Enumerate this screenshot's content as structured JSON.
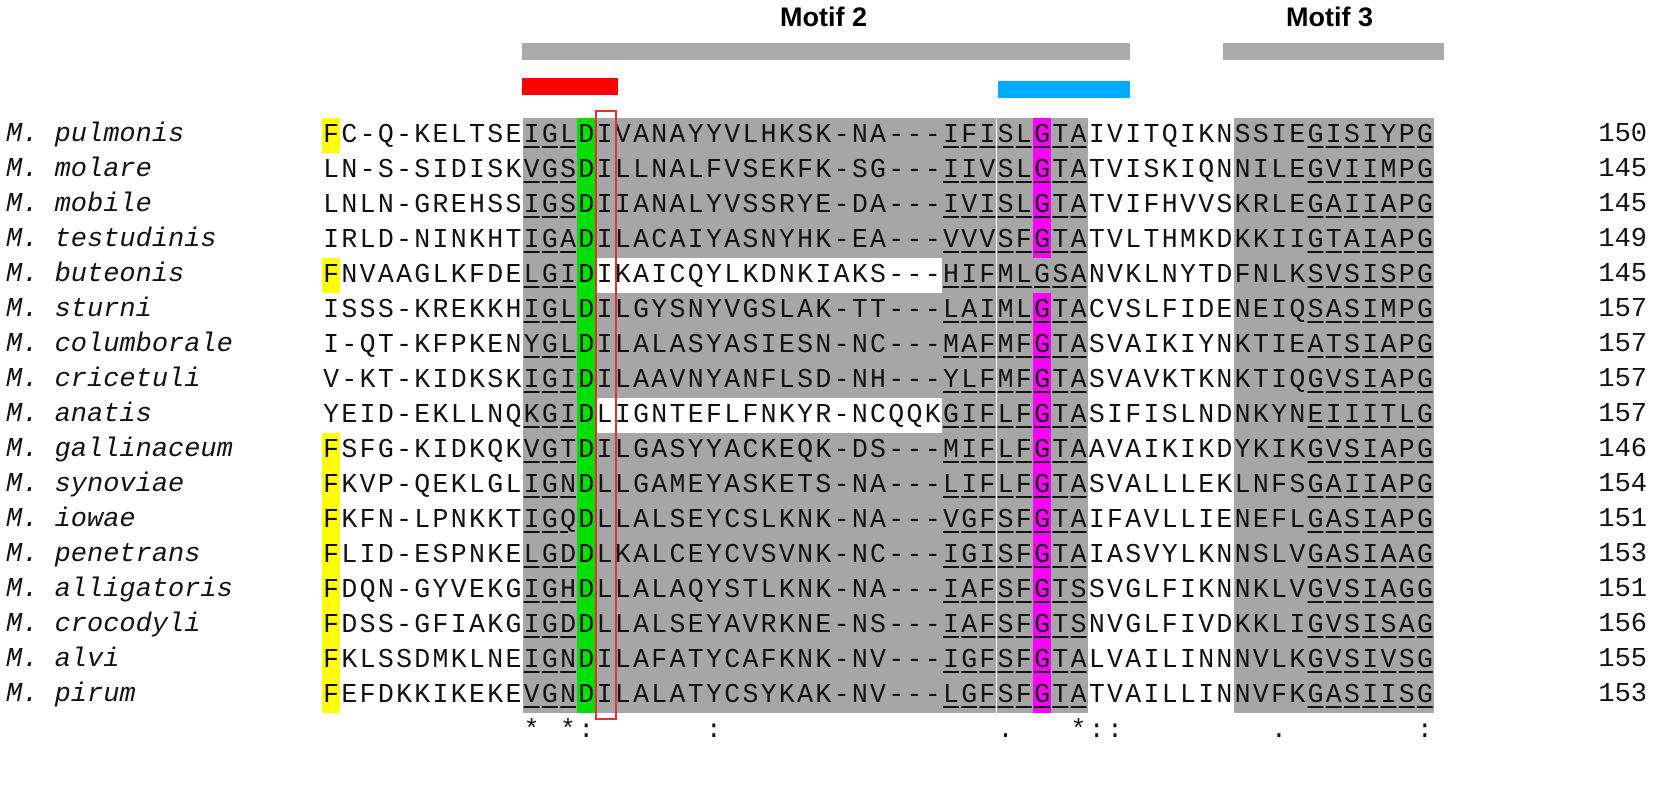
{
  "motifs": [
    {
      "label": "Motif 2",
      "bar_color": "#aaaaaa"
    },
    {
      "label": "Motif 3",
      "bar_color": "#aaaaaa"
    }
  ],
  "marker_colors": {
    "red": "#ff0000",
    "blue": "#00aaff",
    "outline": "#e53030"
  },
  "highlight_colors": {
    "shade": "#a6a6a6",
    "yellow": "#ffff00",
    "green": "#00e000",
    "magenta": "#ff00ff"
  },
  "sequences": [
    {
      "species": "M. pulmonis",
      "seq": "FC-Q-KELTSEIGLDIVANAYYVLHKSK-NA---IFISLGTAIVITQIKNSSIEGISIYPG",
      "end": "150"
    },
    {
      "species": "M. molare",
      "seq": "LN-S-SIDISKVGSDILLNALFVSEKFK-SG---IIVSLGTATVISKIQNNILEGVIIMPG",
      "end": "145"
    },
    {
      "species": "M. mobile",
      "seq": "LNLN-GREHSSIGSDIIANALYVSSRYE-DA---IVISLGTATVIFHVVSKRLEGAIIAPG",
      "end": "145"
    },
    {
      "species": "M. testudinis",
      "seq": "IRLD-NINKHTIGADILACAIYASNYHK-EA---VVVSFGTATVLTHMKDKKIIGTAIAPG",
      "end": "149"
    },
    {
      "species": "M. buteonis",
      "seq": "FNVAAGLKFDELGIDIKAICQYLKDNKIAKS---HIFMLGSANVKLNYTDFNLKSVSISPG",
      "end": "145"
    },
    {
      "species": "M. sturni",
      "seq": "ISSS-KREKKHIGLDILGYSNYVGSLAK-TT---LAIMLGTACVSLFIDENEIQSASIMPG",
      "end": "157"
    },
    {
      "species": "M. columborale",
      "seq": "I-QT-KFPKENYGLDILALASYASIESN-NC---MAFMFGTASVAIKIYNKTIEATSIAPG",
      "end": "157"
    },
    {
      "species": "M. cricetuli",
      "seq": "V-KT-KIDKSKIGIDILAAVNYANFLSD-NH---YLFMFGTASVAVKTKNKTIQGVSIAPG",
      "end": "157"
    },
    {
      "species": "M. anatis",
      "seq": "YEID-EKLLNQKGIDLIGNTEFLFNKYR-NCQQKGIFLFGTASIFISLNDNKYNEIIITLG",
      "end": "157"
    },
    {
      "species": "M. gallinaceum",
      "seq": "FSFG-KIDKQKVGTDILGASYYACKEQK-DS---MIFLFGTAAVAIKIKDYKIKGVSIAPG",
      "end": "146"
    },
    {
      "species": "M. synoviae",
      "seq": "FKVP-QEKLGLIGNDLLGAMEYASKETS-NA---LIFLFGTASVALLLEKLNFSGAIIAPG",
      "end": "154"
    },
    {
      "species": "M. iowae",
      "seq": "FKFN-LPNKKTIGQDLLALSEYCSLKNK-NA---VGFSFGTAIFAVLLIENEFLGASIAPG",
      "end": "151"
    },
    {
      "species": "M. penetrans",
      "seq": "FLID-ESPNKELGDDLKALCEYCVSVNK-NC---IGISFGTAIASVYLKNNSLVGASIAAG",
      "end": "153"
    },
    {
      "species": "M. alligatoris",
      "seq": "FDQN-GYVEKGIGHDLLALAQYSTLKNK-NA---IAFSFGTSSVGLFIKNNKLVGVSIAGG",
      "end": "151"
    },
    {
      "species": "M. crocodyli",
      "seq": "FDSS-GFIAKGIGDDLLALSEYAVRKNE-NS---IAFSFGTSNVGLFIVDKKLIGVSISAG",
      "end": "156"
    },
    {
      "species": "M. alvi",
      "seq": "FKLSSDMKLNEIGNDILAFATYCAFKNK-NV---IGFSFGTALVAILINNNVLKGVSIVSG",
      "end": "155"
    },
    {
      "species": "M. pirum",
      "seq": "FEFDKKIKEKEVGNDILALATYCSYKAK-NV---LGFSFGTATVAILLINNVFKGASIISG",
      "end": "153"
    }
  ],
  "consensus": "           * *:      :               .   *::        .       :  ",
  "highlights": {
    "yellow_rows": [
      0,
      4,
      9,
      10,
      11,
      12,
      13,
      14,
      15,
      16
    ],
    "gray_ranges": [
      [
        11,
        42
      ],
      [
        50,
        61
      ]
    ],
    "ungray_rows": [
      4,
      8
    ],
    "green_col": 14,
    "magenta_col": 39,
    "underline_ranges": [
      [
        11,
        14
      ],
      [
        34,
        42
      ],
      [
        54,
        61
      ]
    ]
  }
}
